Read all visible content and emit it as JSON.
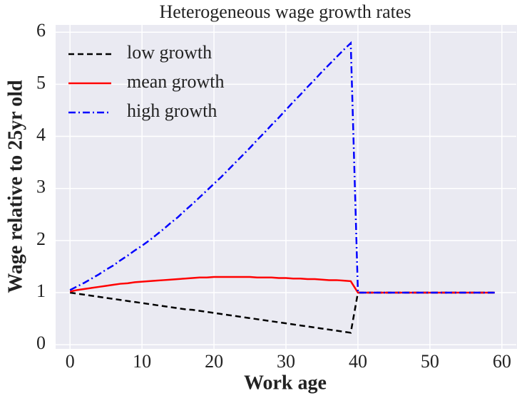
{
  "chart_data": {
    "type": "line",
    "title": "Heterogeneous wage growth rates",
    "x_label": "Work age",
    "y_label": "Wage relative to 25yr old",
    "x": [
      0,
      1,
      2,
      3,
      4,
      5,
      6,
      7,
      8,
      9,
      10,
      11,
      12,
      13,
      14,
      15,
      16,
      17,
      18,
      19,
      20,
      21,
      22,
      23,
      24,
      25,
      26,
      27,
      28,
      29,
      30,
      31,
      32,
      33,
      34,
      35,
      36,
      37,
      38,
      39,
      40,
      41,
      42,
      43,
      44,
      45,
      46,
      47,
      48,
      49,
      50,
      51,
      52,
      53,
      54,
      55,
      56,
      57,
      58,
      59
    ],
    "series": [
      {
        "name": "low growth",
        "color": "#000000",
        "linestyle": "dashed",
        "values": [
          1.0,
          0.98,
          0.96,
          0.94,
          0.92,
          0.9,
          0.88,
          0.86,
          0.84,
          0.82,
          0.8,
          0.78,
          0.76,
          0.74,
          0.72,
          0.7,
          0.68,
          0.67,
          0.65,
          0.63,
          0.61,
          0.59,
          0.57,
          0.55,
          0.53,
          0.51,
          0.49,
          0.47,
          0.45,
          0.43,
          0.41,
          0.39,
          0.37,
          0.35,
          0.33,
          0.31,
          0.29,
          0.27,
          0.25,
          0.23,
          1,
          1,
          1,
          1,
          1,
          1,
          1,
          1,
          1,
          1,
          1,
          1,
          1,
          1,
          1,
          1,
          1,
          1,
          1,
          1
        ]
      },
      {
        "name": "mean growth",
        "color": "#ff0000",
        "linestyle": "solid",
        "values": [
          1.02,
          1.05,
          1.07,
          1.09,
          1.11,
          1.13,
          1.15,
          1.17,
          1.18,
          1.2,
          1.21,
          1.22,
          1.23,
          1.24,
          1.25,
          1.26,
          1.27,
          1.28,
          1.29,
          1.29,
          1.3,
          1.3,
          1.3,
          1.3,
          1.3,
          1.3,
          1.29,
          1.29,
          1.29,
          1.28,
          1.28,
          1.27,
          1.27,
          1.26,
          1.26,
          1.25,
          1.24,
          1.24,
          1.23,
          1.22,
          1,
          1,
          1,
          1,
          1,
          1,
          1,
          1,
          1,
          1,
          1,
          1,
          1,
          1,
          1,
          1,
          1,
          1,
          1,
          1
        ]
      },
      {
        "name": "high growth",
        "color": "#0000ff",
        "linestyle": "dashdot",
        "values": [
          1.05,
          1.12,
          1.19,
          1.27,
          1.35,
          1.44,
          1.52,
          1.62,
          1.71,
          1.81,
          1.9,
          2.0,
          2.11,
          2.22,
          2.34,
          2.45,
          2.58,
          2.7,
          2.83,
          2.96,
          3.09,
          3.22,
          3.36,
          3.5,
          3.64,
          3.78,
          3.93,
          4.07,
          4.22,
          4.36,
          4.51,
          4.66,
          4.8,
          4.95,
          5.09,
          5.24,
          5.38,
          5.52,
          5.66,
          5.79,
          1,
          1,
          1,
          1,
          1,
          1,
          1,
          1,
          1,
          1,
          1,
          1,
          1,
          1,
          1,
          1,
          1,
          1,
          1,
          1
        ]
      }
    ],
    "xlim": [
      -2,
      62
    ],
    "ylim": [
      -0.08,
      6.14
    ],
    "xticks": [
      0,
      10,
      20,
      30,
      40,
      50,
      60
    ],
    "yticks": [
      0,
      1,
      2,
      3,
      4,
      5,
      6
    ],
    "grid": true,
    "legend": "upper left"
  }
}
